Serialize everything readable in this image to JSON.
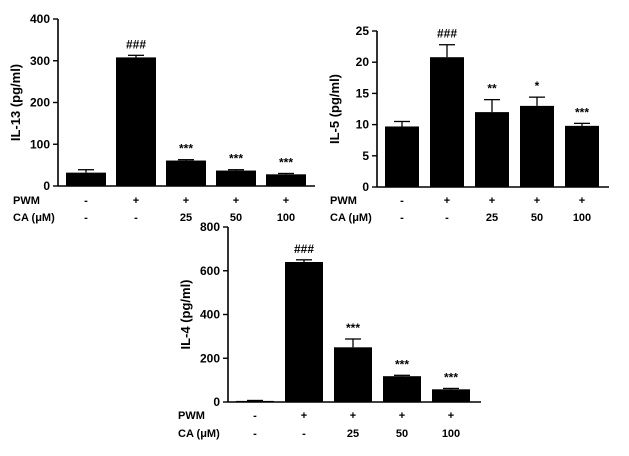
{
  "chart_data": [
    {
      "type": "bar",
      "ylabel": "IL-13 (pg/ml)",
      "ylim": [
        0,
        400
      ],
      "yticks": [
        0,
        100,
        200,
        300,
        400
      ],
      "categories": [
        "1",
        "2",
        "3",
        "4",
        "5"
      ],
      "values": [
        32,
        308,
        61,
        37,
        28
      ],
      "errors": [
        7,
        5,
        2,
        2,
        2
      ],
      "annotations": [
        "",
        "###",
        "***",
        "***",
        "***"
      ],
      "conditions": [
        {
          "label": "PWM",
          "values": [
            "-",
            "+",
            "+",
            "+",
            "+"
          ]
        },
        {
          "label": "CA (μM)",
          "values": [
            "-",
            "-",
            "25",
            "50",
            "100"
          ]
        }
      ],
      "grid": false,
      "color": "#000000"
    },
    {
      "type": "bar",
      "ylabel": "IL-5 (pg/ml)",
      "ylim": [
        0,
        25
      ],
      "yticks": [
        0,
        5,
        10,
        15,
        20,
        25
      ],
      "categories": [
        "1",
        "2",
        "3",
        "4",
        "5"
      ],
      "values": [
        9.7,
        20.8,
        12.0,
        13.0,
        9.8
      ],
      "errors": [
        0.8,
        2.0,
        2.0,
        1.4,
        0.4
      ],
      "annotations": [
        "",
        "###",
        "**",
        "*",
        "***"
      ],
      "conditions": [
        {
          "label": "PWM",
          "values": [
            "-",
            "+",
            "+",
            "+",
            "+"
          ]
        },
        {
          "label": "CA (μM)",
          "values": [
            "-",
            "-",
            "25",
            "50",
            "100"
          ]
        }
      ],
      "grid": false,
      "color": "#000000"
    },
    {
      "type": "bar",
      "ylabel": "IL-4 (pg/ml)",
      "ylim": [
        0,
        800
      ],
      "yticks": [
        0,
        200,
        400,
        600,
        800
      ],
      "categories": [
        "1",
        "2",
        "3",
        "4",
        "5"
      ],
      "values": [
        5,
        640,
        250,
        118,
        58
      ],
      "errors": [
        2,
        10,
        38,
        4,
        4
      ],
      "annotations": [
        "",
        "###",
        "***",
        "***",
        "***"
      ],
      "conditions": [
        {
          "label": "PWM",
          "values": [
            "-",
            "+",
            "+",
            "+",
            "+"
          ]
        },
        {
          "label": "CA (μM)",
          "values": [
            "-",
            "-",
            "25",
            "50",
            "100"
          ]
        }
      ],
      "grid": false,
      "color": "#000000"
    }
  ]
}
